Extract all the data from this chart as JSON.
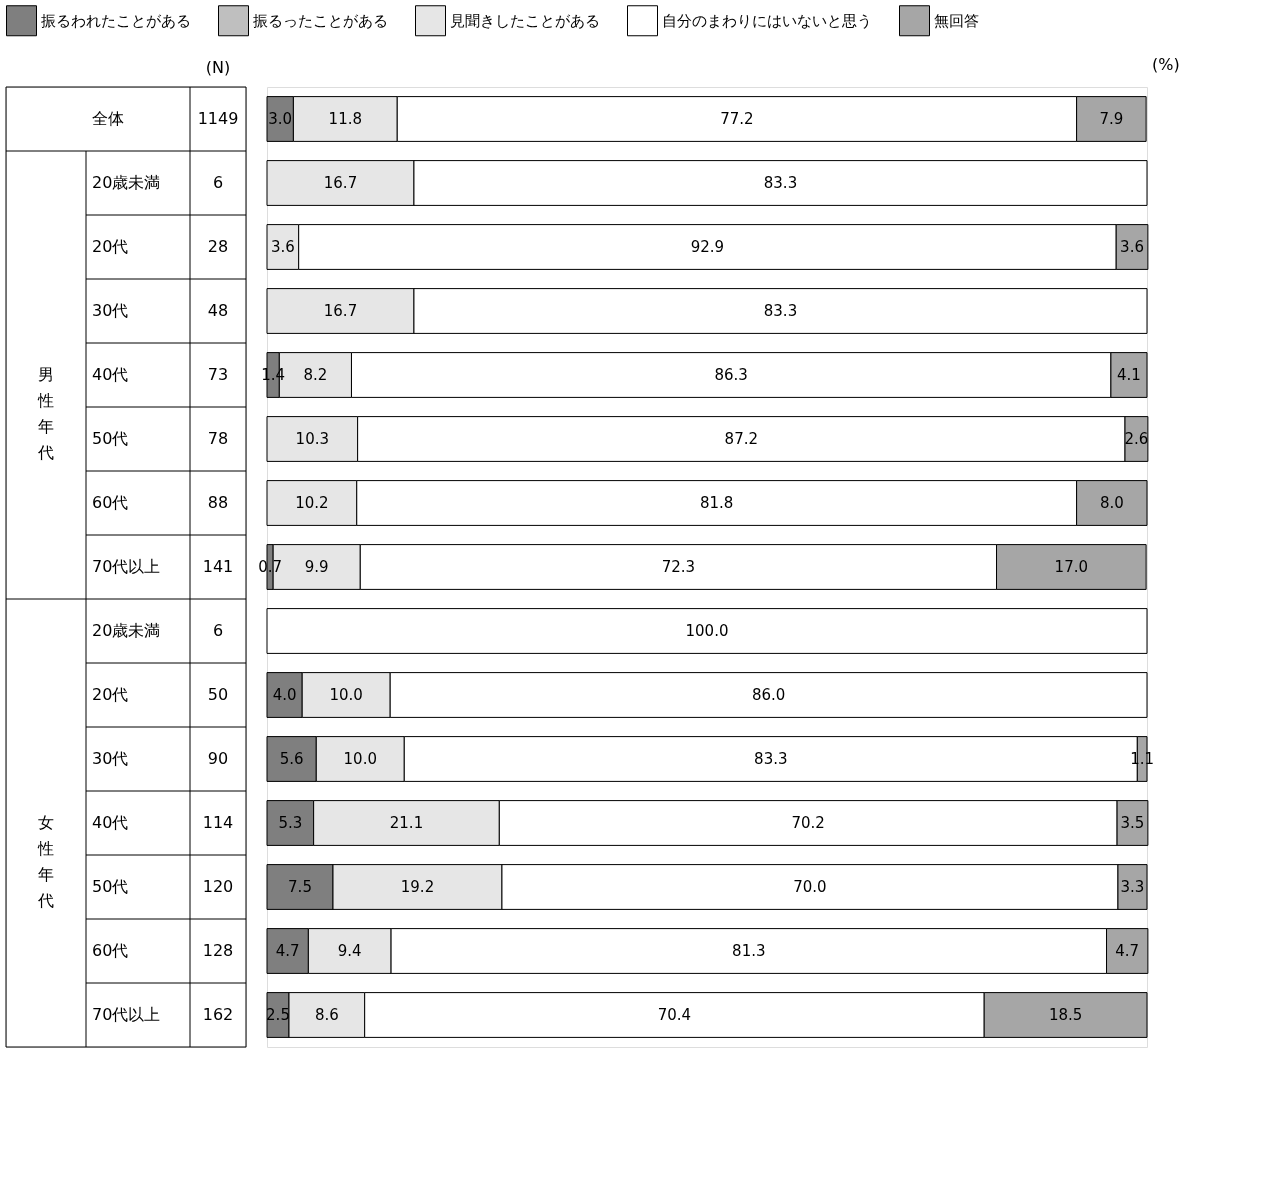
{
  "chart_data": {
    "type": "bar",
    "orientation": "horizontal",
    "stacked": true,
    "legend": "top",
    "xlim": [
      0,
      100
    ],
    "categories": [
      "全体",
      "20歳未満",
      "20代",
      "30代",
      "40代",
      "50代",
      "60代",
      "70代以上",
      "20歳未満",
      "20代",
      "30代",
      "40代",
      "50代",
      "60代",
      "70代以上"
    ],
    "y2_categories": [
      "1149",
      "6",
      "28",
      "48",
      "73",
      "78",
      "88",
      "141",
      "6",
      "50",
      "90",
      "114",
      "120",
      "128",
      "162"
    ],
    "series": [
      {
        "name": "振るわれたことがある",
        "color": "#7f7f7f",
        "values": [
          3.0,
          null,
          null,
          null,
          1.4,
          null,
          null,
          0.7,
          null,
          4.0,
          5.6,
          5.3,
          7.5,
          4.7,
          2.5
        ],
        "value_labels": [
          "3.0",
          null,
          null,
          null,
          "1.4",
          null,
          null,
          "0.7",
          null,
          "4.0",
          "5.6",
          "5.3",
          "7.5",
          "4.7",
          "2.5"
        ]
      },
      {
        "name": "振るったことがある",
        "color": "#bfbfbf",
        "values": [
          null,
          null,
          null,
          null,
          null,
          null,
          null,
          null,
          null,
          null,
          null,
          null,
          null,
          null,
          null
        ],
        "value_labels": [
          null,
          null,
          null,
          null,
          null,
          null,
          null,
          null,
          null,
          null,
          null,
          null,
          null,
          null,
          null
        ]
      },
      {
        "name": "見聞きしたことがある",
        "color": "#e6e6e6",
        "values": [
          11.8,
          16.7,
          3.6,
          16.7,
          8.2,
          10.3,
          10.2,
          9.9,
          null,
          10.0,
          10.0,
          21.1,
          19.2,
          9.4,
          8.6
        ],
        "value_labels": [
          "11.8",
          "16.7",
          "3.6",
          "16.7",
          "8.2",
          "10.3",
          "10.2",
          "9.9",
          null,
          "10.0",
          "10.0",
          "21.1",
          "19.2",
          "9.4",
          "8.6"
        ]
      },
      {
        "name": "自分のまわりにはいないと思う",
        "color": "#ffffff",
        "values": [
          77.2,
          83.3,
          92.9,
          83.3,
          86.3,
          87.2,
          81.8,
          72.3,
          100.0,
          86.0,
          83.3,
          70.2,
          70.0,
          81.3,
          70.4
        ],
        "value_labels": [
          "77.2",
          "83.3",
          "92.9",
          "83.3",
          "86.3",
          "87.2",
          "81.8",
          "72.3",
          "100.0",
          "86.0",
          "83.3",
          "70.2",
          "70.0",
          "81.3",
          "70.4"
        ]
      },
      {
        "name": "無回答",
        "color": "#a6a6a6",
        "values": [
          7.9,
          null,
          3.6,
          null,
          4.1,
          2.6,
          8.0,
          17.0,
          null,
          null,
          1.1,
          3.5,
          3.3,
          4.7,
          18.5
        ],
        "value_labels": [
          "7.9",
          null,
          "3.6",
          null,
          "4.1",
          "2.6",
          "8.0",
          "17.0",
          null,
          null,
          "1.1",
          "3.5",
          "3.3",
          "4.7",
          "18.5"
        ]
      }
    ],
    "annotations": [
      "男性年代",
      "女性年代",
      "(N)",
      "(%)"
    ]
  }
}
